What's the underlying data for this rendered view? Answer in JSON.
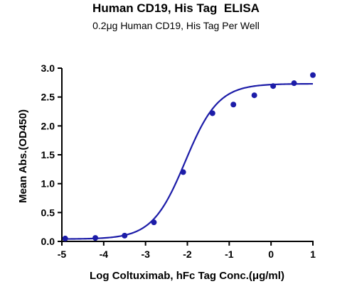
{
  "chart_data": {
    "type": "scatter",
    "title": "Human CD19, His Tag  ELISA",
    "subtitle": "0.2μg Human CD19, His Tag Per Well",
    "xlabel": "Log Coltuximab, hFc Tag Conc.(μg/ml)",
    "ylabel": "Mean Abs.(OD450)",
    "xlim": [
      -5,
      1
    ],
    "ylim": [
      0,
      3.0
    ],
    "xticks": [
      -5,
      -4,
      -3,
      -2,
      -1,
      0,
      1
    ],
    "xtick_labels": [
      "-5",
      "-4",
      "-3",
      "-2",
      "-1",
      "0",
      "1"
    ],
    "yticks": [
      0,
      0.5,
      1.0,
      1.5,
      2.0,
      2.5,
      3.0
    ],
    "ytick_labels": [
      "0.0",
      "0.5",
      "1.0",
      "1.5",
      "2.0",
      "2.5",
      "3.0"
    ],
    "grid": false,
    "series": [
      {
        "x": [
          -4.92,
          -4.2,
          -3.5,
          -2.8,
          -2.1,
          -1.4,
          -0.9,
          -0.4,
          0.05,
          0.55,
          1.0
        ],
        "y": [
          0.05,
          0.06,
          0.1,
          0.33,
          1.2,
          2.22,
          2.37,
          2.53,
          2.69,
          2.74,
          2.88
        ],
        "color": "#1c1ca8"
      }
    ],
    "fit": {
      "model": "4PL",
      "bottom": 0.04,
      "top": 2.73,
      "log_ec50": -2.05,
      "hill_slope": 1.1,
      "color": "#1c1ca8"
    }
  }
}
